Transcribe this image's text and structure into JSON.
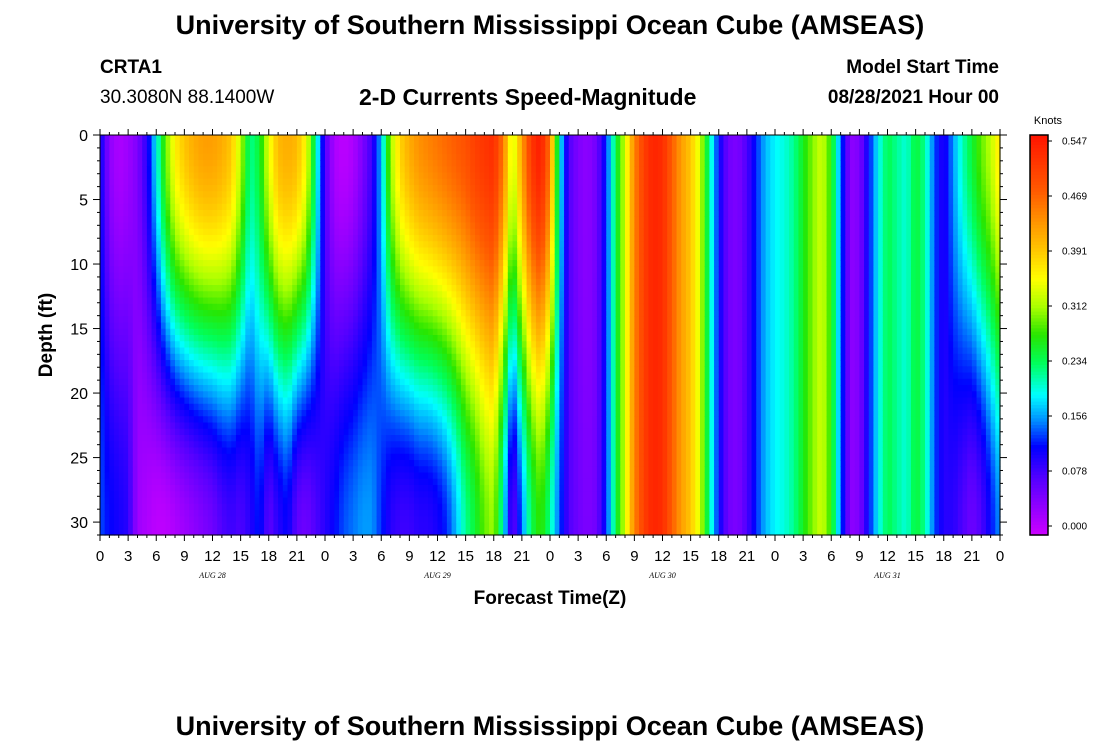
{
  "title": "University of Southern Mississippi Ocean Cube (AMSEAS)",
  "footer_title": "University of Southern Mississippi Ocean Cube (AMSEAS)",
  "station": {
    "name": "CRTA1",
    "coords": "30.3080N  88.1400W"
  },
  "subtitle": "2-D Currents Speed-Magnitude",
  "model_start": {
    "label": "Model Start Time",
    "value": "08/28/2021 Hour 00"
  },
  "chart_data": {
    "type": "heatmap",
    "title": "2-D Currents Speed-Magnitude",
    "xlabel": "Forecast Time(Z)",
    "ylabel": "Depth (ft)",
    "x_hours_range": [
      0,
      96
    ],
    "ylim": [
      31,
      0
    ],
    "y_ticks": [
      0,
      5,
      10,
      15,
      20,
      25,
      30
    ],
    "x_tick_labels": [
      "0",
      "3",
      "6",
      "9",
      "12",
      "15",
      "18",
      "21",
      "0",
      "3",
      "6",
      "9",
      "12",
      "15",
      "18",
      "21",
      "0",
      "3",
      "6",
      "9",
      "12",
      "15",
      "18",
      "21",
      "0",
      "3",
      "6",
      "9",
      "12",
      "15",
      "18",
      "21",
      "0"
    ],
    "date_labels": [
      {
        "label": "AUG 28",
        "hour": 12
      },
      {
        "label": "AUG 29",
        "hour": 36
      },
      {
        "label": "AUG 30",
        "hour": 60
      },
      {
        "label": "AUG 31",
        "hour": 84
      }
    ],
    "colorbar": {
      "unit": "Knots",
      "ticks": [
        "0.547",
        "0.469",
        "0.391",
        "0.312",
        "0.234",
        "0.156",
        "0.078",
        "0.000"
      ],
      "range": [
        0.0,
        0.547
      ]
    },
    "speed_field": {
      "description": "Current speed (knots) per forecast hour; profile value at surface (0 ft) and bottom (31 ft)",
      "hours": [
        0,
        1,
        2,
        3,
        4,
        5,
        6,
        7,
        8,
        9,
        10,
        11,
        12,
        13,
        14,
        15,
        16,
        17,
        18,
        19,
        20,
        21,
        22,
        23,
        24,
        25,
        26,
        27,
        28,
        29,
        30,
        31,
        32,
        33,
        34,
        35,
        36,
        37,
        38,
        39,
        40,
        41,
        42,
        43,
        44,
        45,
        46,
        47,
        48,
        49,
        50,
        51,
        52,
        53,
        54,
        55,
        56,
        57,
        58,
        59,
        60,
        61,
        62,
        63,
        64,
        65,
        66,
        67,
        68,
        69,
        70,
        71,
        72,
        73,
        74,
        75,
        76,
        77,
        78,
        79,
        80,
        81,
        82,
        83,
        84,
        85,
        86,
        87,
        88,
        89,
        90,
        91,
        92,
        93,
        94,
        95,
        96
      ],
      "surface": [
        0.12,
        0.04,
        0.02,
        0.03,
        0.05,
        0.1,
        0.19,
        0.29,
        0.36,
        0.39,
        0.41,
        0.42,
        0.42,
        0.41,
        0.39,
        0.32,
        0.22,
        0.25,
        0.34,
        0.4,
        0.41,
        0.4,
        0.35,
        0.22,
        0.08,
        0.02,
        0.01,
        0.02,
        0.05,
        0.09,
        0.17,
        0.31,
        0.38,
        0.41,
        0.43,
        0.44,
        0.45,
        0.46,
        0.47,
        0.48,
        0.5,
        0.51,
        0.52,
        0.45,
        0.32,
        0.42,
        0.51,
        0.54,
        0.45,
        0.2,
        0.08,
        0.05,
        0.04,
        0.06,
        0.13,
        0.24,
        0.33,
        0.44,
        0.5,
        0.53,
        0.52,
        0.47,
        0.42,
        0.39,
        0.33,
        0.22,
        0.12,
        0.06,
        0.05,
        0.08,
        0.13,
        0.17,
        0.19,
        0.2,
        0.22,
        0.26,
        0.3,
        0.33,
        0.27,
        0.15,
        0.04,
        0.05,
        0.12,
        0.19,
        0.24,
        0.22,
        0.2,
        0.25,
        0.22,
        0.14,
        0.1,
        0.16,
        0.21,
        0.25,
        0.29,
        0.32,
        0.37
      ],
      "bottom": [
        0.14,
        0.12,
        0.11,
        0.1,
        0.03,
        0.02,
        0.01,
        0.01,
        0.02,
        0.03,
        0.04,
        0.05,
        0.06,
        0.08,
        0.09,
        0.08,
        0.1,
        0.13,
        0.07,
        0.1,
        0.12,
        0.07,
        0.06,
        0.08,
        0.1,
        0.12,
        0.14,
        0.15,
        0.16,
        0.16,
        0.13,
        0.1,
        0.09,
        0.09,
        0.1,
        0.1,
        0.11,
        0.13,
        0.17,
        0.22,
        0.25,
        0.29,
        0.31,
        0.2,
        0.06,
        0.15,
        0.24,
        0.28,
        0.22,
        0.14,
        0.08,
        0.06,
        0.05,
        0.06,
        0.13,
        0.24,
        0.33,
        0.44,
        0.5,
        0.53,
        0.52,
        0.47,
        0.42,
        0.39,
        0.33,
        0.22,
        0.12,
        0.06,
        0.05,
        0.08,
        0.13,
        0.17,
        0.19,
        0.2,
        0.22,
        0.26,
        0.3,
        0.33,
        0.27,
        0.15,
        0.04,
        0.05,
        0.12,
        0.19,
        0.24,
        0.22,
        0.2,
        0.25,
        0.22,
        0.14,
        0.1,
        0.1,
        0.08,
        0.06,
        0.08,
        0.12,
        0.16
      ]
    }
  }
}
